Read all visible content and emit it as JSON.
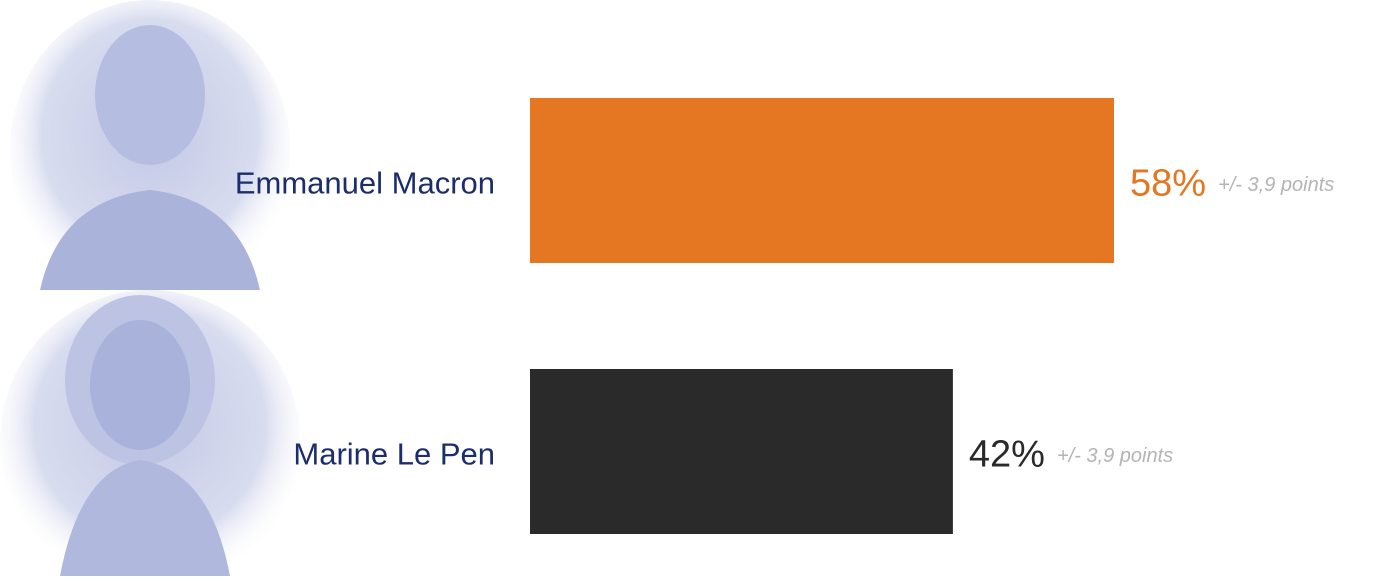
{
  "chart_data": {
    "type": "bar",
    "orientation": "horizontal",
    "categories": [
      "Emmanuel Macron",
      "Marine Le Pen"
    ],
    "values": [
      58,
      42
    ],
    "value_labels": [
      "58%",
      "42%"
    ],
    "annotations": [
      "+/- 3,9 points",
      "+/- 3,9 points"
    ],
    "colors": [
      "#e57722",
      "#2a2a2a"
    ]
  }
}
